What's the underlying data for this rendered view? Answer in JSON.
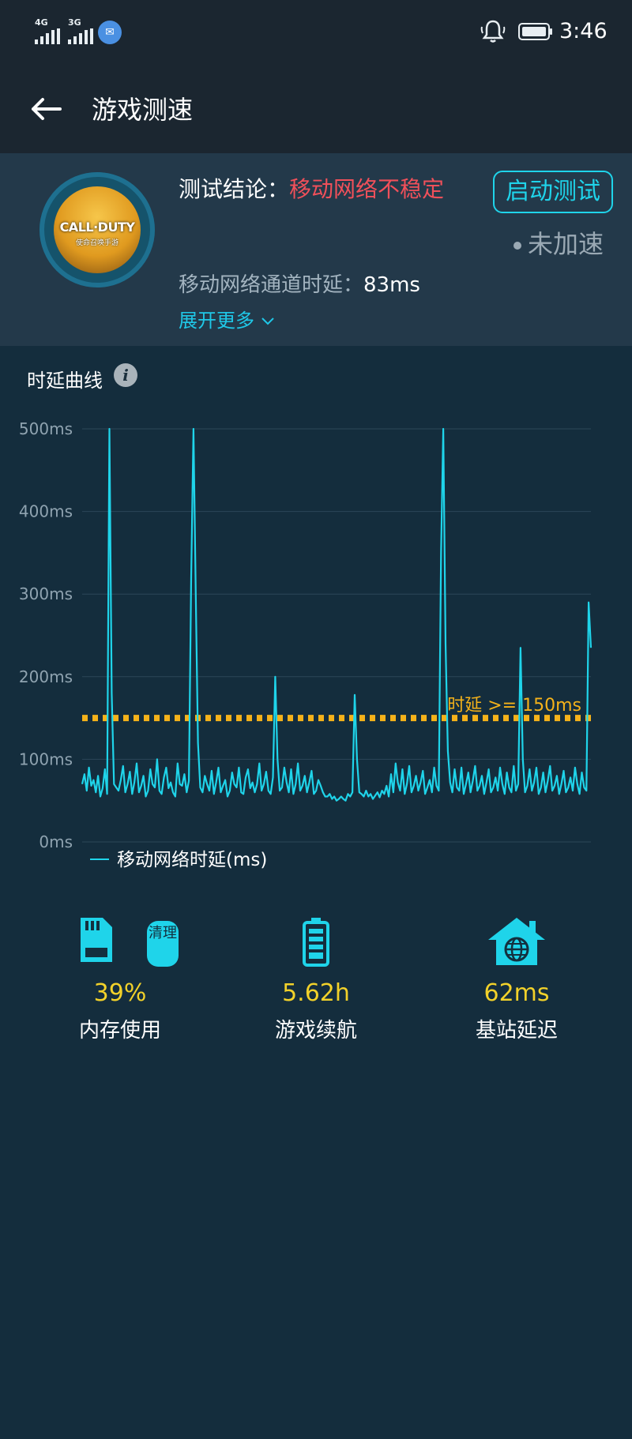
{
  "status_bar": {
    "net1": "4G",
    "net2": "3G",
    "time": "3:46"
  },
  "app_bar": {
    "title": "游戏测速"
  },
  "summary": {
    "conclusion_label": "测试结论：",
    "conclusion_value": "移动网络不稳定",
    "start_button": "启动测试",
    "accel_status": "未加速",
    "delay_label": "移动网络通道时延：",
    "delay_value": "83ms",
    "expand_label": "展开更多",
    "game_logo": "CALL·DUTY",
    "game_logo_sub": "使命召唤手游"
  },
  "curve": {
    "title": "时延曲线",
    "info_icon": "i"
  },
  "chart_data": {
    "type": "line",
    "y_ticks": [
      "500ms",
      "400ms",
      "300ms",
      "200ms",
      "100ms",
      "0ms"
    ],
    "ylim": [
      0,
      500
    ],
    "threshold_value": 150,
    "threshold_label": "时延 >= 150ms",
    "series": [
      {
        "name": "移动网络时延(ms)",
        "color": "#1fd4ea",
        "values": [
          70,
          82,
          62,
          90,
          68,
          75,
          60,
          80,
          55,
          65,
          88,
          58,
          500,
          180,
          70,
          66,
          62,
          75,
          92,
          60,
          70,
          85,
          58,
          72,
          95,
          60,
          68,
          80,
          55,
          62,
          88,
          70,
          66,
          100,
          62,
          58,
          78,
          90,
          65,
          72,
          60,
          55,
          95,
          70,
          68,
          82,
          60,
          74,
          320,
          500,
          300,
          120,
          66,
          60,
          80,
          70,
          62,
          86,
          58,
          72,
          90,
          60,
          68,
          75,
          55,
          62,
          84,
          70,
          66,
          90,
          60,
          58,
          78,
          88,
          65,
          72,
          60,
          70,
          95,
          62,
          70,
          85,
          62,
          58,
          78,
          200,
          100,
          62,
          66,
          90,
          72,
          60,
          88,
          58,
          70,
          95,
          62,
          68,
          80,
          60,
          72,
          86,
          58,
          62,
          75,
          68,
          60,
          55,
          55,
          58,
          52,
          55,
          50,
          52,
          55,
          52,
          50,
          58,
          55,
          60,
          178,
          100,
          60,
          58,
          55,
          62,
          55,
          58,
          52,
          56,
          60,
          54,
          62,
          58,
          68,
          55,
          82,
          60,
          95,
          72,
          62,
          88,
          58,
          70,
          92,
          60,
          68,
          80,
          62,
          72,
          86,
          58,
          66,
          75,
          60,
          90,
          68,
          62,
          350,
          500,
          240,
          110,
          72,
          60,
          88,
          66,
          62,
          90,
          58,
          70,
          84,
          60,
          74,
          92,
          62,
          68,
          80,
          58,
          72,
          88,
          60,
          66,
          78,
          62,
          90,
          70,
          58,
          84,
          66,
          60,
          92,
          62,
          70,
          235,
          100,
          60,
          68,
          88,
          62,
          72,
          90,
          58,
          66,
          84,
          60,
          74,
          92,
          62,
          68,
          80,
          58,
          70,
          86,
          60,
          66,
          78,
          62,
          90,
          70,
          58,
          84,
          66,
          62,
          290,
          235
        ]
      }
    ]
  },
  "stats": [
    {
      "value": "39%",
      "label": "内存使用",
      "icon": "sd-card-icon",
      "badge": "清理"
    },
    {
      "value": "5.62h",
      "label": "游戏续航",
      "icon": "battery-icon"
    },
    {
      "value": "62ms",
      "label": "基站延迟",
      "icon": "globe-house-icon"
    }
  ],
  "colors": {
    "accent": "#1fd4ea",
    "warning": "#f0505a",
    "threshold": "#f5b21a",
    "stat_value": "#f2d12a"
  }
}
